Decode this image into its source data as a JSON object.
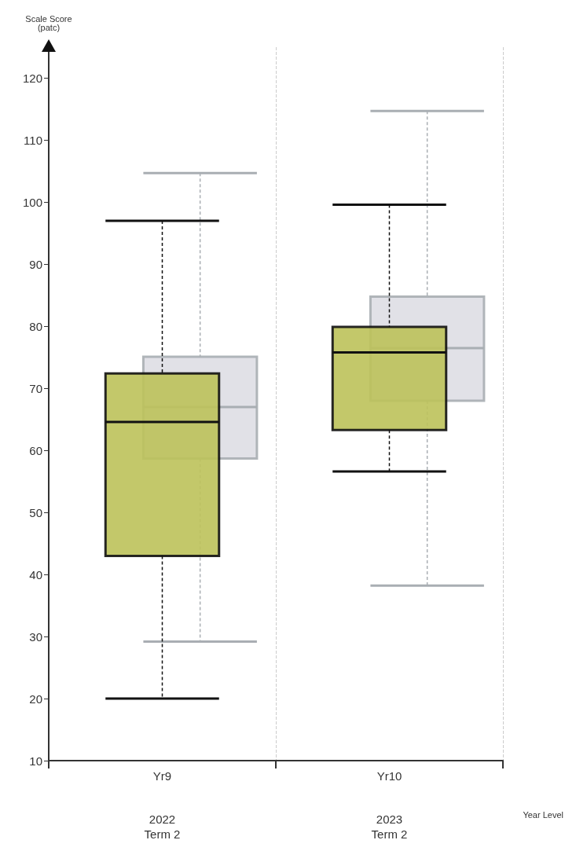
{
  "chart_data": {
    "type": "box",
    "xlabel": "Year Level",
    "ylabel": "Scale Score\n(patc)",
    "categories": [
      "Yr9",
      "Yr10"
    ],
    "series": [
      {
        "color": "#dedee4",
        "boxes": [
          {
            "low": 29.2,
            "q1": 58.7,
            "median": 67,
            "q3": 75.1,
            "high": 104.7
          },
          {
            "low": 38.2,
            "q1": 68,
            "median": 76.5,
            "q3": 84.8,
            "high": 114.7
          }
        ]
      },
      {
        "color": "#bcc25a",
        "boxes": [
          {
            "low": 20,
            "q1": 43,
            "median": 64.6,
            "q3": 72.4,
            "high": 97
          },
          {
            "low": 56.6,
            "q1": 63.3,
            "median": 75.8,
            "q3": 79.9,
            "high": 99.6
          }
        ]
      }
    ],
    "ylim": [
      10,
      125
    ],
    "yticks": [
      10,
      20,
      30,
      40,
      50,
      60,
      70,
      80,
      90,
      100,
      110,
      120
    ],
    "grid": "x",
    "annotations": [
      "2022\nTerm 2",
      "2023\nTerm 2"
    ]
  }
}
